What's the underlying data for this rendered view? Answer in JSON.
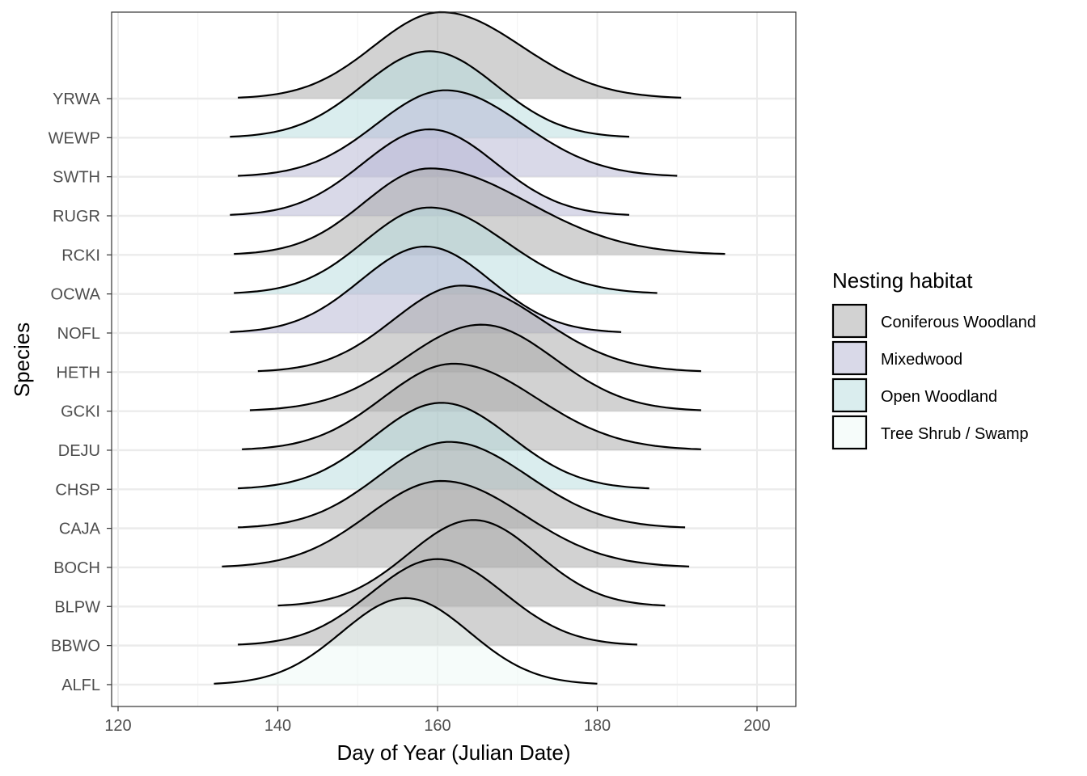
{
  "chart_data": {
    "type": "ridgeline",
    "xlabel": "Day of Year (Julian Date)",
    "ylabel": "Species",
    "xlim": [
      119,
      205
    ],
    "x_ticks": [
      120,
      140,
      160,
      180,
      200
    ],
    "grid": true,
    "legend": {
      "title": "Nesting habitat",
      "position": "right",
      "entries": [
        {
          "label": "Coniferous Woodland",
          "color": "#a6a6a6"
        },
        {
          "label": "Mixedwood",
          "color": "#b3b3d1"
        },
        {
          "label": "Open Woodland",
          "color": "#b5dbdd"
        },
        {
          "label": "Tree Shrub / Swamp",
          "color": "#eef9f5"
        }
      ]
    },
    "series": [
      {
        "species": "ALFL",
        "habitat": "Tree Shrub / Swamp",
        "peak": 156,
        "min": 132,
        "max": 180
      },
      {
        "species": "BBWO",
        "habitat": "Coniferous Woodland",
        "peak": 160,
        "min": 135,
        "max": 185
      },
      {
        "species": "BLPW",
        "habitat": "Coniferous Woodland",
        "peak": 164.5,
        "min": 140,
        "max": 188.5
      },
      {
        "species": "BOCH",
        "habitat": "Coniferous Woodland",
        "peak": 160.5,
        "min": 133,
        "max": 191.5
      },
      {
        "species": "CAJA",
        "habitat": "Coniferous Woodland",
        "peak": 161.5,
        "min": 135,
        "max": 191
      },
      {
        "species": "CHSP",
        "habitat": "Open Woodland",
        "peak": 160.5,
        "min": 135,
        "max": 186.5
      },
      {
        "species": "DEJU",
        "habitat": "Coniferous Woodland",
        "peak": 162,
        "min": 135.5,
        "max": 193
      },
      {
        "species": "GCKI",
        "habitat": "Coniferous Woodland",
        "peak": 165.5,
        "min": 136.5,
        "max": 193
      },
      {
        "species": "HETH",
        "habitat": "Coniferous Woodland",
        "peak": 163,
        "min": 137.5,
        "max": 193
      },
      {
        "species": "NOFL",
        "habitat": "Mixedwood",
        "peak": 158.5,
        "min": 134,
        "max": 183
      },
      {
        "species": "OCWA",
        "habitat": "Open Woodland",
        "peak": 159,
        "min": 134.5,
        "max": 187.5
      },
      {
        "species": "RCKI",
        "habitat": "Coniferous Woodland",
        "peak": 159,
        "min": 134.5,
        "max": 196
      },
      {
        "species": "RUGR",
        "habitat": "Mixedwood",
        "peak": 159,
        "min": 134,
        "max": 184
      },
      {
        "species": "SWTH",
        "habitat": "Mixedwood",
        "peak": 161,
        "min": 135,
        "max": 190
      },
      {
        "species": "WEWP",
        "habitat": "Open Woodland",
        "peak": 159,
        "min": 134,
        "max": 184
      },
      {
        "species": "YRWA",
        "habitat": "Coniferous Woodland",
        "peak": 160.5,
        "min": 135,
        "max": 190.5
      }
    ]
  }
}
